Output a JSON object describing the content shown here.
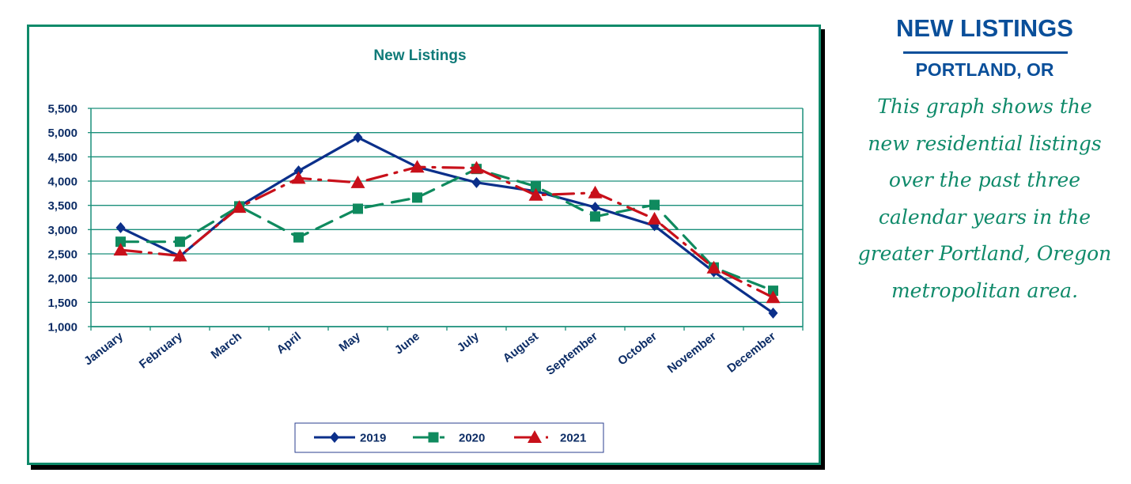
{
  "colors": {
    "frame": "#0f8a6a",
    "grid": "#1a8f7a",
    "axis_text": "#0d2d66",
    "title_text": "#0f7a78",
    "side_heading": "#0a4f9a",
    "side_body": "#0f8a6a"
  },
  "chart_data": {
    "type": "line",
    "title": "New Listings",
    "xlabel": "",
    "ylabel": "",
    "categories": [
      "January",
      "February",
      "March",
      "April",
      "May",
      "June",
      "July",
      "August",
      "September",
      "October",
      "November",
      "December"
    ],
    "ylim": [
      1000,
      5500
    ],
    "yticks": [
      1000,
      1500,
      2000,
      2500,
      3000,
      3500,
      4000,
      4500,
      5000,
      5500
    ],
    "ytick_labels": [
      "1,000",
      "1,500",
      "2,000",
      "2,500",
      "3,000",
      "3,500",
      "4,000",
      "4,500",
      "5,000",
      "5,500"
    ],
    "grid": true,
    "legend": "bottom",
    "series": [
      {
        "name": "2019",
        "color": "#0b2f8a",
        "marker": "diamond",
        "style": "solid",
        "values": [
          3040,
          2450,
          3480,
          4210,
          4900,
          4290,
          3970,
          3790,
          3460,
          3080,
          2130,
          1280
        ]
      },
      {
        "name": "2020",
        "color": "#0f8a5e",
        "marker": "square",
        "style": "dash",
        "values": [
          2750,
          2750,
          3480,
          2840,
          3430,
          3660,
          4250,
          3890,
          3270,
          3510,
          2220,
          1740
        ]
      },
      {
        "name": "2021",
        "color": "#c8101a",
        "marker": "triangle",
        "style": "dashdot",
        "values": [
          2580,
          2460,
          3460,
          4060,
          3970,
          4290,
          4270,
          3710,
          3760,
          3220,
          2210,
          1600
        ]
      }
    ]
  },
  "side": {
    "title": "NEW LISTINGS",
    "subtitle": "PORTLAND, OR",
    "description_lines": [
      "This graph shows the",
      "new residential listings",
      "over the past three",
      "calendar years in the",
      "greater Portland, Oregon",
      "metropolitan area."
    ]
  }
}
